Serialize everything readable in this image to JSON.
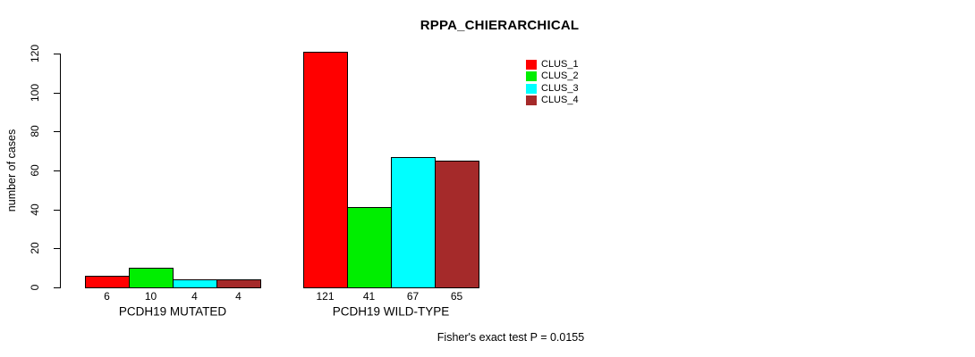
{
  "chart_data": {
    "type": "bar",
    "title": "RPPA_CHIERARCHICAL",
    "ylabel": "number of cases",
    "xlabel": "",
    "ylim": [
      0,
      120
    ],
    "yticks": [
      0,
      20,
      40,
      60,
      80,
      100,
      120
    ],
    "grid": false,
    "legend_position": "top-right",
    "groups": [
      "PCDH19 MUTATED",
      "PCDH19 WILD-TYPE"
    ],
    "series": [
      {
        "name": "CLUS_1",
        "color": "#FF0000",
        "values": [
          6,
          121
        ]
      },
      {
        "name": "CLUS_2",
        "color": "#00EE00",
        "values": [
          10,
          41
        ]
      },
      {
        "name": "CLUS_3",
        "color": "#00FFFF",
        "values": [
          4,
          67
        ]
      },
      {
        "name": "CLUS_4",
        "color": "#A52A2A",
        "values": [
          4,
          65
        ]
      }
    ],
    "bar_labels": [
      [
        "6",
        "10",
        "4",
        "4"
      ],
      [
        "121",
        "41",
        "67",
        "65"
      ]
    ],
    "annotation": "Fisher's exact test P = 0.0155"
  }
}
